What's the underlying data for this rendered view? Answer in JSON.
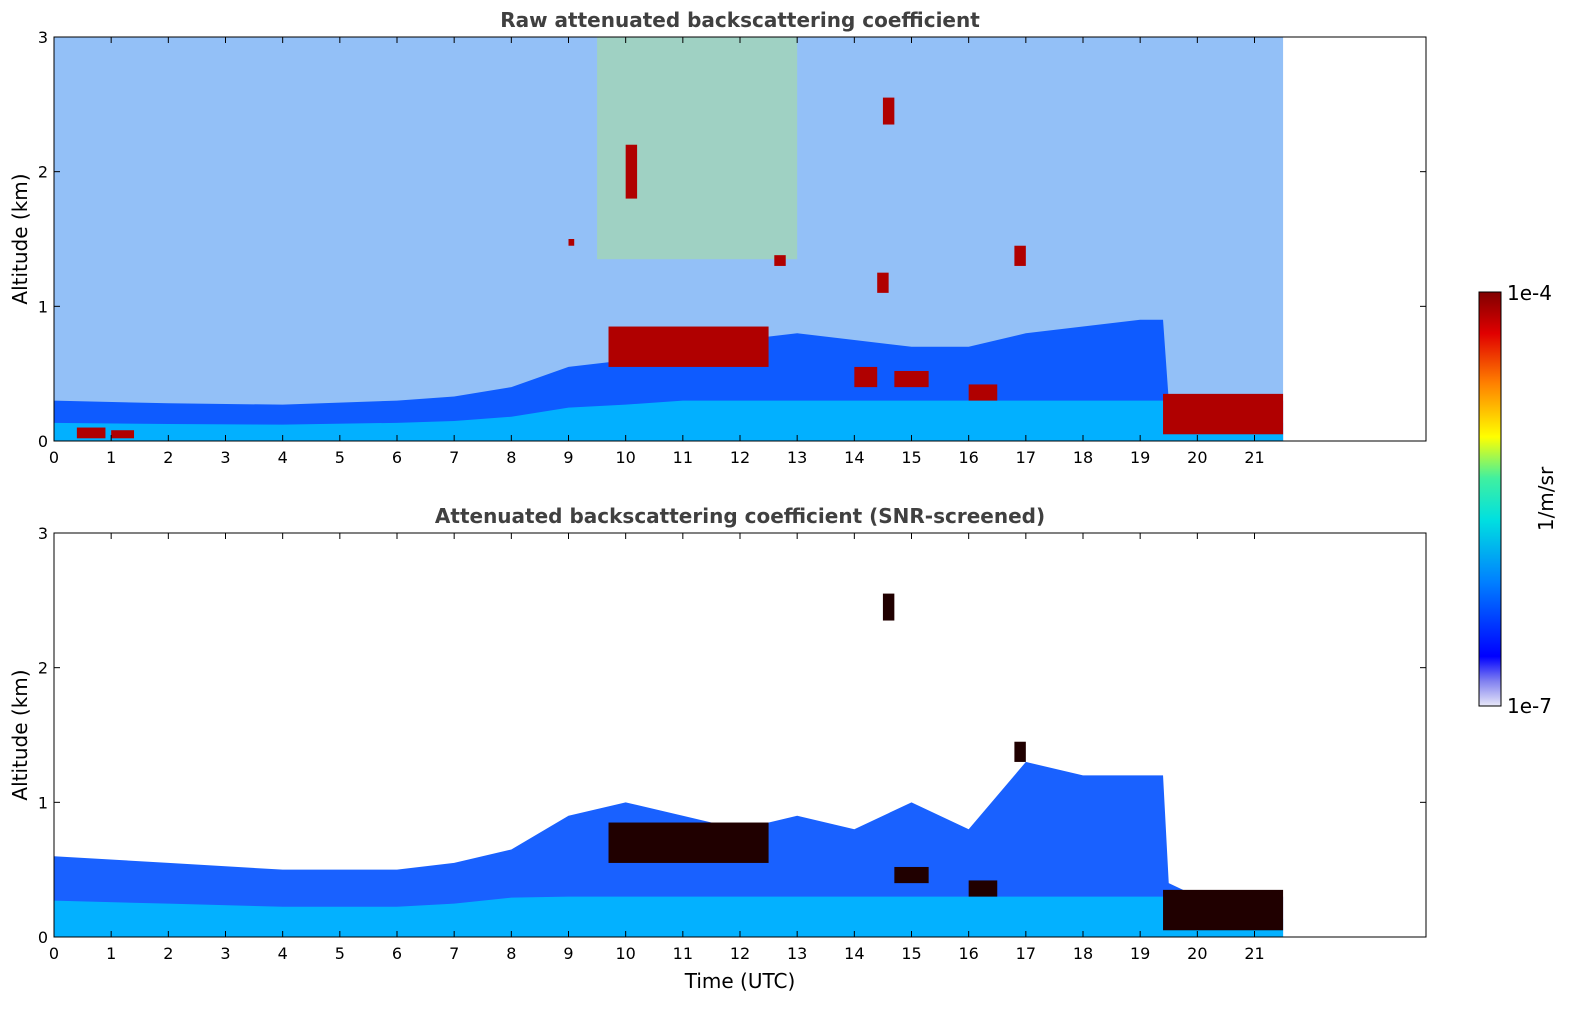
{
  "colors": {
    "colormap": [
      "#e8e8f8",
      "#b8b8f0",
      "#8080f0",
      "#0000ff",
      "#0040ff",
      "#0080ff",
      "#00c0ff",
      "#00e0e0",
      "#40f0a0",
      "#a0f040",
      "#ffff00",
      "#ffc000",
      "#ff8000",
      "#ff2000",
      "#c00000",
      "#800000"
    ],
    "axis": "#000000",
    "title": "#404040"
  },
  "chart_data": [
    {
      "type": "heatmap",
      "title": "Raw attenuated backscattering coefficient",
      "xlabel": "",
      "ylabel": "Altitude (km)",
      "xlim": [
        0,
        24
      ],
      "ylim": [
        0,
        3
      ],
      "x_ticks": [
        "0",
        "1",
        "2",
        "3",
        "4",
        "5",
        "6",
        "7",
        "8",
        "9",
        "10",
        "11",
        "12",
        "13",
        "14",
        "15",
        "16",
        "17",
        "18",
        "19",
        "20",
        "21"
      ],
      "y_ticks": [
        "0",
        "1",
        "2",
        "3"
      ],
      "data_extent_x": [
        0,
        21.5
      ],
      "boundary_layer_top_km": [
        [
          0,
          0.3
        ],
        [
          2,
          0.28
        ],
        [
          4,
          0.27
        ],
        [
          6,
          0.3
        ],
        [
          7,
          0.33
        ],
        [
          8,
          0.4
        ],
        [
          9,
          0.55
        ],
        [
          10,
          0.6
        ],
        [
          11,
          0.7
        ],
        [
          12,
          0.75
        ],
        [
          13,
          0.8
        ],
        [
          14,
          0.75
        ],
        [
          15,
          0.7
        ],
        [
          16,
          0.7
        ],
        [
          17,
          0.8
        ],
        [
          18,
          0.85
        ],
        [
          19,
          0.9
        ],
        [
          19.4,
          0.9
        ],
        [
          19.5,
          0.3
        ],
        [
          20,
          0.25
        ],
        [
          21.5,
          0.3
        ]
      ],
      "cloud_layers": [
        {
          "x0": 0.4,
          "x1": 0.9,
          "y0": 0.02,
          "y1": 0.1
        },
        {
          "x0": 1.0,
          "x1": 1.4,
          "y0": 0.02,
          "y1": 0.08
        },
        {
          "x0": 9.7,
          "x1": 12.5,
          "y0": 0.55,
          "y1": 0.85
        },
        {
          "x0": 14.0,
          "x1": 14.4,
          "y0": 0.4,
          "y1": 0.55
        },
        {
          "x0": 14.7,
          "x1": 15.3,
          "y0": 0.4,
          "y1": 0.52
        },
        {
          "x0": 16.0,
          "x1": 16.5,
          "y0": 0.3,
          "y1": 0.42
        },
        {
          "x0": 19.4,
          "x1": 21.5,
          "y0": 0.05,
          "y1": 0.35
        },
        {
          "x0": 10.0,
          "x1": 10.2,
          "y0": 1.8,
          "y1": 2.2
        },
        {
          "x0": 14.5,
          "x1": 14.7,
          "y0": 2.35,
          "y1": 2.55
        },
        {
          "x0": 14.4,
          "x1": 14.6,
          "y0": 1.1,
          "y1": 1.25
        },
        {
          "x0": 16.8,
          "x1": 17.0,
          "y0": 1.3,
          "y1": 1.45
        },
        {
          "x0": 9.0,
          "x1": 9.1,
          "y0": 1.45,
          "y1": 1.5
        },
        {
          "x0": 12.6,
          "x1": 12.8,
          "y0": 1.3,
          "y1": 1.38
        }
      ]
    },
    {
      "type": "heatmap",
      "title": "Attenuated backscattering coefficient (SNR-screened)",
      "xlabel": "Time (UTC)",
      "ylabel": "Altitude (km)",
      "xlim": [
        0,
        24
      ],
      "ylim": [
        0,
        3
      ],
      "x_ticks": [
        "0",
        "1",
        "2",
        "3",
        "4",
        "5",
        "6",
        "7",
        "8",
        "9",
        "10",
        "11",
        "12",
        "13",
        "14",
        "15",
        "16",
        "17",
        "18",
        "19",
        "20",
        "21"
      ],
      "y_ticks": [
        "0",
        "1",
        "2",
        "3"
      ],
      "data_extent_x": [
        0,
        21.5
      ],
      "boundary_layer_top_km": [
        [
          0,
          0.6
        ],
        [
          2,
          0.55
        ],
        [
          4,
          0.5
        ],
        [
          6,
          0.5
        ],
        [
          7,
          0.55
        ],
        [
          8,
          0.65
        ],
        [
          9,
          0.9
        ],
        [
          10,
          1.0
        ],
        [
          11,
          0.9
        ],
        [
          12,
          0.8
        ],
        [
          13,
          0.9
        ],
        [
          14,
          0.8
        ],
        [
          15,
          1.0
        ],
        [
          16,
          0.8
        ],
        [
          17,
          1.3
        ],
        [
          18,
          1.2
        ],
        [
          19,
          1.2
        ],
        [
          19.4,
          1.2
        ],
        [
          19.5,
          0.4
        ],
        [
          20,
          0.3
        ],
        [
          21.5,
          0.3
        ]
      ],
      "cloud_layers": [
        {
          "x0": 9.7,
          "x1": 12.5,
          "y0": 0.55,
          "y1": 0.85
        },
        {
          "x0": 14.7,
          "x1": 15.3,
          "y0": 0.4,
          "y1": 0.52
        },
        {
          "x0": 16.0,
          "x1": 16.5,
          "y0": 0.3,
          "y1": 0.42
        },
        {
          "x0": 19.4,
          "x1": 21.5,
          "y0": 0.05,
          "y1": 0.35
        },
        {
          "x0": 14.5,
          "x1": 14.7,
          "y0": 2.35,
          "y1": 2.55
        },
        {
          "x0": 16.8,
          "x1": 17.0,
          "y0": 1.3,
          "y1": 1.45
        }
      ]
    }
  ],
  "colorbar": {
    "label": "1/m/sr",
    "max_label": "1e-4",
    "min_label": "1e-7",
    "scale": "log",
    "range": [
      1e-07,
      0.0001
    ]
  }
}
